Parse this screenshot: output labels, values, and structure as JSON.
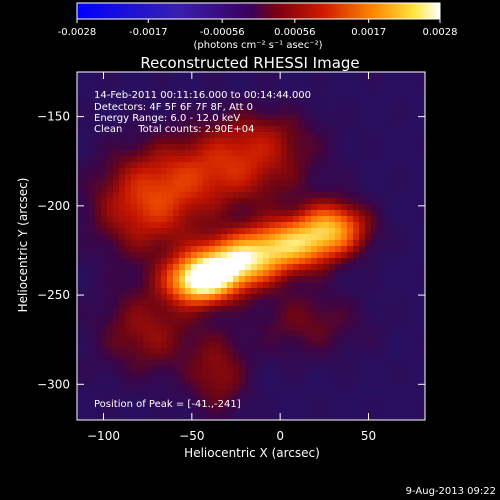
{
  "colorbar": {
    "ticks": [
      "-0.0028",
      "-0.0017",
      "-0.00056",
      "0.00056",
      "0.0017",
      "0.0028"
    ],
    "tick_values": [
      -0.0028,
      -0.0017,
      -0.00056,
      0.00056,
      0.0017,
      0.0028
    ],
    "range": [
      -0.0028,
      0.0028
    ],
    "units_label": "(photons cm⁻² s⁻¹ asec⁻²)"
  },
  "plot": {
    "title": "Reconstructed RHESSI Image",
    "info_lines": [
      "14-Feb-2011 00:11:16.000 to 00:14:44.000",
      "Detectors: 4F 5F 6F 7F 8F, Att 0",
      "Energy Range: 6.0 - 12.0 keV",
      "Clean     Total counts: 2.90E+04"
    ],
    "peak_text": "Position of Peak = [-41.,-241]"
  },
  "footer": {
    "timestamp": "9-Aug-2013 09:22"
  },
  "chart_data": {
    "type": "heatmap",
    "title": "Reconstructed RHESSI Image",
    "xlabel": "Heliocentric X (arcsec)",
    "ylabel": "Heliocentric Y (arcsec)",
    "xlim": [
      -115,
      82
    ],
    "ylim": [
      -320,
      -125
    ],
    "x_ticks": [
      -100,
      -50,
      0,
      50
    ],
    "y_ticks": [
      -300,
      -250,
      -200,
      -150
    ],
    "x_tick_labels": [
      "−100",
      "−50",
      "0",
      "50"
    ],
    "y_tick_labels": [
      "−300",
      "−250",
      "−200",
      "−150"
    ],
    "colormap": "hot-negative-blue",
    "colors": {
      "min": "#0000ff",
      "mid": "#3a005a",
      "max": "#ffffff"
    },
    "peak": {
      "x": -41,
      "y": -241
    },
    "sources": [
      {
        "x": -45,
        "y": -242,
        "amplitude": 1.0,
        "sx": 13,
        "sy": 9
      },
      {
        "x": -25,
        "y": -232,
        "amplitude": 0.85,
        "sx": 16,
        "sy": 10
      },
      {
        "x": 5,
        "y": -222,
        "amplitude": 0.75,
        "sx": 18,
        "sy": 10
      },
      {
        "x": 30,
        "y": -212,
        "amplitude": 0.65,
        "sx": 14,
        "sy": 10
      },
      {
        "x": -75,
        "y": -200,
        "amplitude": 0.45,
        "sx": 22,
        "sy": 20
      },
      {
        "x": -30,
        "y": -180,
        "amplitude": 0.4,
        "sx": 30,
        "sy": 16
      },
      {
        "x": -75,
        "y": -270,
        "amplitude": 0.3,
        "sx": 20,
        "sy": 18
      },
      {
        "x": -35,
        "y": -295,
        "amplitude": 0.28,
        "sx": 12,
        "sy": 16
      },
      {
        "x": 15,
        "y": -265,
        "amplitude": 0.22,
        "sx": 22,
        "sy": 14
      },
      {
        "x": -10,
        "y": -160,
        "amplitude": 0.2,
        "sx": 22,
        "sy": 12
      }
    ]
  }
}
